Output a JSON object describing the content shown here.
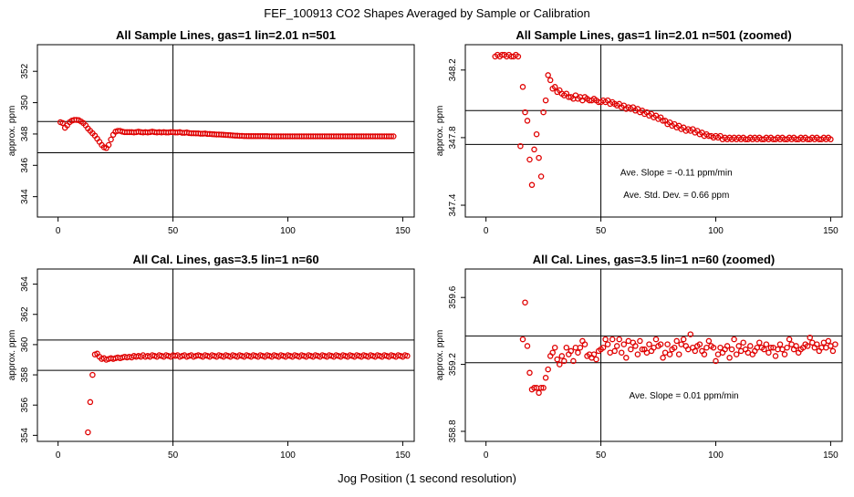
{
  "figure": {
    "title": "FEF_100913  CO2 Shapes Averaged by Sample or Calibration",
    "xlabel": "Jog Position (1 second resolution)"
  },
  "colors": {
    "points": "#e00000",
    "lines": "#000000",
    "background": "#ffffff"
  },
  "chart_data": [
    {
      "type": "scatter",
      "title": "All Sample Lines, gas=1 lin=2.01 n=501",
      "ylabel": "approx. ppm",
      "xlim": [
        -9,
        155
      ],
      "ylim": [
        342.7,
        353.7
      ],
      "xticks": [
        0,
        50,
        100,
        150
      ],
      "yticks": [
        344,
        346,
        348,
        350,
        352
      ],
      "vline": 50,
      "hlines": [
        348.8,
        346.8
      ],
      "annotations": [],
      "series": [
        {
          "x_start": 1,
          "x_step": 1,
          "y": [
            348.75,
            348.7,
            348.4,
            348.55,
            348.75,
            348.85,
            348.9,
            348.9,
            348.88,
            348.8,
            348.7,
            348.55,
            348.35,
            348.2,
            348.05,
            347.9,
            347.7,
            347.5,
            347.3,
            347.15,
            347.1,
            347.3,
            347.65,
            347.95,
            348.15,
            348.2,
            348.2,
            348.15,
            348.12,
            348.12,
            348.12,
            348.12,
            348.1,
            348.12,
            348.15,
            348.12,
            348.1,
            348.12,
            348.1,
            348.12,
            348.15,
            348.12,
            348.1,
            348.12,
            348.1,
            348.12,
            348.1,
            348.1,
            348.12,
            348.12,
            348.1,
            348.1,
            348.12,
            348.08,
            348.08,
            348.1,
            348.06,
            348.05,
            348.05,
            348.04,
            348.04,
            348.02,
            348.02,
            348.03,
            348.0,
            348.0,
            347.99,
            347.98,
            347.97,
            347.97,
            347.96,
            347.95,
            347.94,
            347.93,
            347.92,
            347.91,
            347.9,
            347.89,
            347.88,
            347.88,
            347.87,
            347.87,
            347.86,
            347.86,
            347.86,
            347.86,
            347.86,
            347.86,
            347.86,
            347.86,
            347.86,
            347.85,
            347.85,
            347.85,
            347.85,
            347.85,
            347.85,
            347.85,
            347.85,
            347.85,
            347.85,
            347.85,
            347.85,
            347.85,
            347.85,
            347.85,
            347.85,
            347.85,
            347.85,
            347.85,
            347.85,
            347.85,
            347.85,
            347.85,
            347.85,
            347.85,
            347.85,
            347.85,
            347.85,
            347.85,
            347.85,
            347.85,
            347.85,
            347.85,
            347.85,
            347.85,
            347.85,
            347.85,
            347.85,
            347.85,
            347.85,
            347.85,
            347.85,
            347.85,
            347.85,
            347.85,
            347.85,
            347.85,
            347.85,
            347.85,
            347.85,
            347.85,
            347.85,
            347.85,
            347.85,
            347.85
          ]
        }
      ]
    },
    {
      "type": "scatter",
      "title": "All Sample Lines, gas=1 lin=2.01 n=501 (zoomed)",
      "ylabel": "approx. ppm",
      "xlim": [
        -9,
        155
      ],
      "ylim": [
        347.33,
        348.35
      ],
      "xticks": [
        0,
        50,
        100,
        150
      ],
      "yticks": [
        347.4,
        347.8,
        348.2
      ],
      "yticklabels": [
        "347.4",
        "347.8",
        "348.2"
      ],
      "vline": 50,
      "hlines": [
        347.96,
        347.76
      ],
      "annotations": [
        "Ave. Slope =  -0.11  ppm/min",
        "Ave. Std. Dev. =  0.66  ppm"
      ],
      "series": [
        {
          "x_start": 4,
          "x_step": 1,
          "y": [
            348.28,
            348.29,
            348.28,
            348.29,
            348.29,
            348.28,
            348.29,
            348.28,
            348.28,
            348.29,
            348.28,
            347.75,
            348.1,
            347.95,
            347.9,
            347.67,
            347.52,
            347.73,
            347.82,
            347.68,
            347.57,
            347.95,
            348.02,
            348.17,
            348.14,
            348.09,
            348.1,
            348.07,
            348.08,
            348.06,
            348.05,
            348.06,
            348.04,
            348.04,
            348.03,
            348.05,
            348.03,
            348.04,
            348.02,
            348.04,
            348.03,
            348.02,
            348.02,
            348.03,
            348.02,
            348.01,
            348.01,
            348.02,
            348.01,
            348.02,
            348.0,
            348.01,
            348.0,
            347.99,
            348.0,
            347.98,
            347.99,
            347.97,
            347.98,
            347.97,
            347.98,
            347.96,
            347.97,
            347.95,
            347.96,
            347.94,
            347.95,
            347.93,
            347.94,
            347.92,
            347.93,
            347.91,
            347.92,
            347.9,
            347.9,
            347.88,
            347.89,
            347.87,
            347.88,
            347.86,
            347.87,
            347.85,
            347.86,
            347.84,
            347.85,
            347.84,
            347.85,
            347.83,
            347.84,
            347.82,
            347.83,
            347.81,
            347.82,
            347.81,
            347.81,
            347.8,
            347.81,
            347.8,
            347.81,
            347.79,
            347.8,
            347.79,
            347.8,
            347.79,
            347.8,
            347.79,
            347.8,
            347.79,
            347.8,
            347.79,
            347.79,
            347.8,
            347.79,
            347.8,
            347.79,
            347.8,
            347.79,
            347.79,
            347.8,
            347.79,
            347.8,
            347.79,
            347.79,
            347.8,
            347.79,
            347.8,
            347.79,
            347.79,
            347.8,
            347.79,
            347.8,
            347.79,
            347.79,
            347.8,
            347.79,
            347.8,
            347.79,
            347.79,
            347.8,
            347.79,
            347.8,
            347.79,
            347.79,
            347.8,
            347.79,
            347.8,
            347.79
          ]
        }
      ]
    },
    {
      "type": "scatter",
      "title": "All Cal. Lines, gas=3.5 lin=1 n=60",
      "ylabel": "approx. ppm",
      "xlim": [
        -9,
        155
      ],
      "ylim": [
        353.6,
        365
      ],
      "xticks": [
        0,
        50,
        100,
        150
      ],
      "yticks": [
        354,
        356,
        358,
        360,
        362,
        364
      ],
      "vline": 50,
      "hlines": [
        360.3,
        358.3
      ],
      "annotations": [],
      "series": [
        {
          "x_start": 13,
          "x_step": 1,
          "y": [
            354.2,
            356.2,
            358.0,
            359.35,
            359.4,
            359.2,
            359.05,
            359.1,
            359.0,
            359.05,
            359.1,
            359.05,
            359.1,
            359.15,
            359.1,
            359.15,
            359.2,
            359.15,
            359.2,
            359.15,
            359.25,
            359.2,
            359.25,
            359.2,
            359.3,
            359.2,
            359.25,
            359.2,
            359.3,
            359.25,
            359.2,
            359.3,
            359.25,
            359.2,
            359.3,
            359.25,
            359.2,
            359.3,
            359.25,
            359.3,
            359.2,
            359.25,
            359.3,
            359.2,
            359.25,
            359.3,
            359.2,
            359.25,
            359.3,
            359.25,
            359.2,
            359.3,
            359.25,
            359.2,
            359.3,
            359.25,
            359.2,
            359.3,
            359.25,
            359.2,
            359.3,
            359.25,
            359.2,
            359.3,
            359.25,
            359.2,
            359.3,
            359.25,
            359.2,
            359.3,
            359.25,
            359.2,
            359.3,
            359.25,
            359.2,
            359.3,
            359.25,
            359.2,
            359.3,
            359.25,
            359.2,
            359.3,
            359.25,
            359.2,
            359.3,
            359.25,
            359.2,
            359.3,
            359.25,
            359.2,
            359.3,
            359.25,
            359.2,
            359.3,
            359.25,
            359.2,
            359.3,
            359.25,
            359.2,
            359.3,
            359.25,
            359.2,
            359.3,
            359.25,
            359.2,
            359.3,
            359.25,
            359.2,
            359.3,
            359.25,
            359.2,
            359.3,
            359.25,
            359.2,
            359.3,
            359.25,
            359.2,
            359.3,
            359.25,
            359.2,
            359.3,
            359.25,
            359.2,
            359.3,
            359.25,
            359.2,
            359.3,
            359.25,
            359.2,
            359.3,
            359.25,
            359.2,
            359.3,
            359.25,
            359.2,
            359.3,
            359.25,
            359.2,
            359.3,
            359.25
          ]
        }
      ]
    },
    {
      "type": "scatter",
      "title": "All Cal. Lines, gas=3.5 lin=1 n=60 (zoomed)",
      "ylabel": "approx. ppm",
      "xlim": [
        -9,
        155
      ],
      "ylim": [
        358.74,
        359.77
      ],
      "xticks": [
        0,
        50,
        100,
        150
      ],
      "yticks": [
        358.8,
        359.2,
        359.6
      ],
      "yticklabels": [
        "358.8",
        "359.2",
        "359.6"
      ],
      "vline": 50,
      "hlines": [
        359.37,
        359.21
      ],
      "annotations": [
        "Ave. Slope =  0.01  ppm/min"
      ],
      "series": [
        {
          "x_start": 16,
          "x_step": 1,
          "y": [
            359.35,
            359.57,
            359.31,
            359.15,
            359.05,
            359.06,
            359.06,
            359.03,
            359.06,
            359.06,
            359.12,
            359.17,
            359.25,
            359.27,
            359.3,
            359.23,
            359.2,
            359.25,
            359.22,
            359.3,
            359.26,
            359.28,
            359.22,
            359.3,
            359.27,
            359.3,
            359.34,
            359.32,
            359.25,
            359.26,
            359.24,
            359.26,
            359.23,
            359.28,
            359.29,
            359.3,
            359.35,
            359.32,
            359.27,
            359.35,
            359.28,
            359.31,
            359.35,
            359.27,
            359.32,
            359.24,
            359.34,
            359.29,
            359.33,
            359.31,
            359.26,
            359.34,
            359.29,
            359.29,
            359.27,
            359.32,
            359.28,
            359.3,
            359.35,
            359.31,
            359.32,
            359.24,
            359.27,
            359.32,
            359.26,
            359.29,
            359.3,
            359.34,
            359.26,
            359.32,
            359.35,
            359.31,
            359.29,
            359.38,
            359.3,
            359.28,
            359.31,
            359.32,
            359.28,
            359.26,
            359.3,
            359.34,
            359.31,
            359.3,
            359.22,
            359.26,
            359.3,
            359.27,
            359.29,
            359.31,
            359.24,
            359.29,
            359.35,
            359.26,
            359.31,
            359.28,
            359.33,
            359.29,
            359.27,
            359.31,
            359.26,
            359.28,
            359.3,
            359.33,
            359.3,
            359.29,
            359.32,
            359.27,
            359.3,
            359.3,
            359.25,
            359.29,
            359.32,
            359.29,
            359.26,
            359.3,
            359.35,
            359.32,
            359.29,
            359.31,
            359.27,
            359.29,
            359.3,
            359.32,
            359.31,
            359.36,
            359.33,
            359.3,
            359.32,
            359.28,
            359.3,
            359.33,
            359.3,
            359.34,
            359.31,
            359.28,
            359.32
          ]
        }
      ]
    }
  ]
}
